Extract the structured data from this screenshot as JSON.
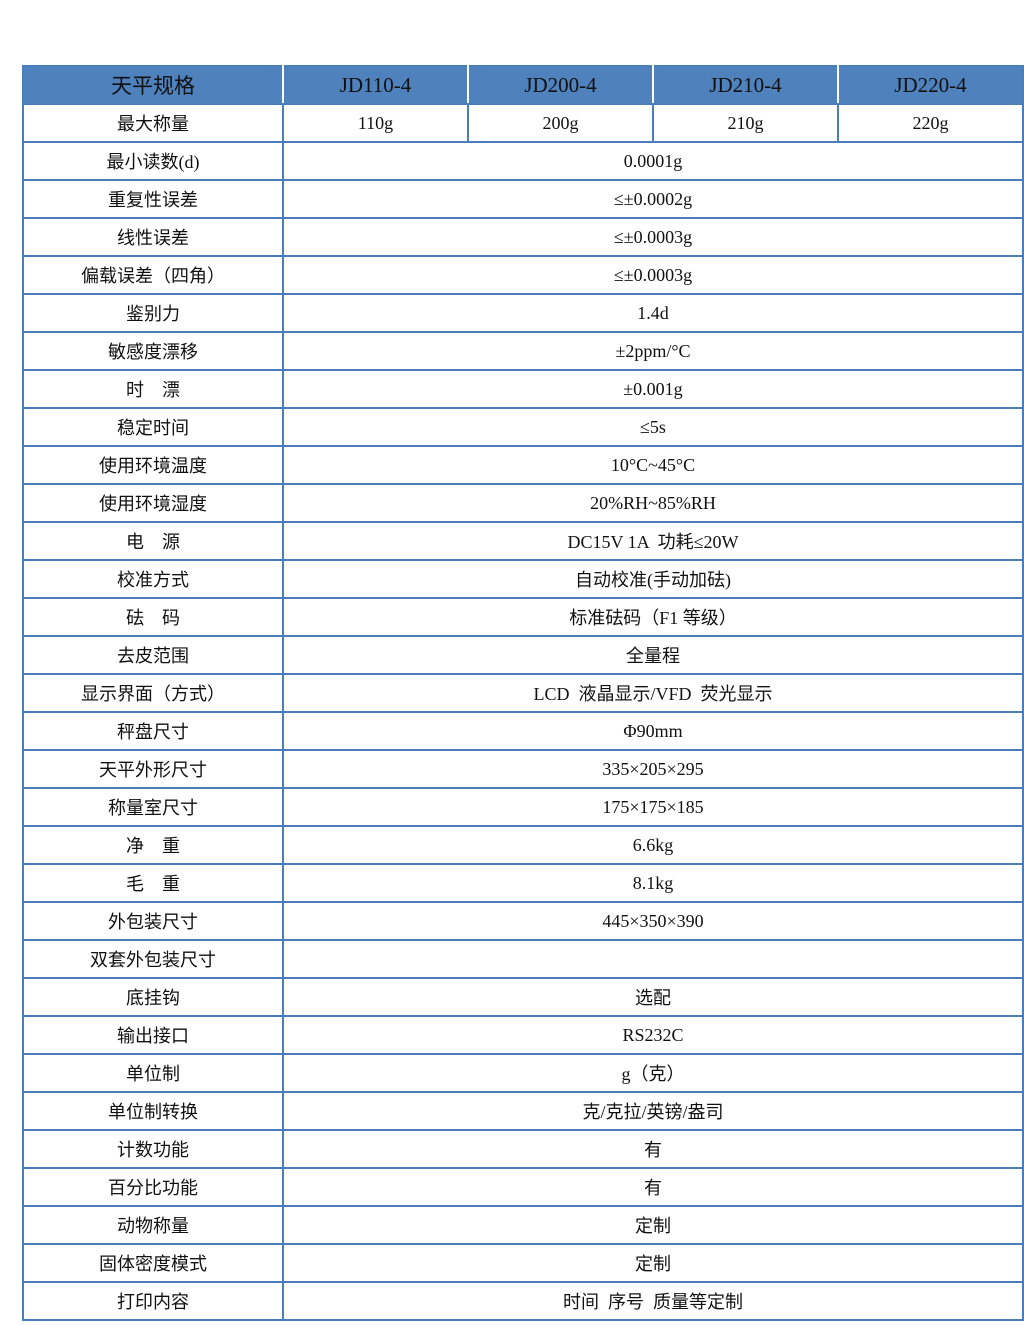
{
  "colors": {
    "header_bg": "#4f81bd",
    "border": "#4a7ebb"
  },
  "header": {
    "label": "天平规格",
    "models": [
      "JD110-4",
      "JD200-4",
      "JD210-4",
      "JD220-4"
    ]
  },
  "rows": [
    {
      "label": "最大称量",
      "values": [
        "110g",
        "200g",
        "210g",
        "220g"
      ]
    },
    {
      "label": "最小读数(d)",
      "value": "0.0001g"
    },
    {
      "label": "重复性误差",
      "value": "≤±0.0002g"
    },
    {
      "label": "线性误差",
      "value": "≤±0.0003g"
    },
    {
      "label": "偏载误差（四角）",
      "value": "≤±0.0003g"
    },
    {
      "label": "鉴别力",
      "value": "1.4d"
    },
    {
      "label": "敏感度漂移",
      "value": "±2ppm/°C"
    },
    {
      "label": "时　漂",
      "value": "±0.001g"
    },
    {
      "label": "稳定时间",
      "value": "≤5s"
    },
    {
      "label": "使用环境温度",
      "value": "10°C~45°C"
    },
    {
      "label": "使用环境湿度",
      "value": "20%RH~85%RH"
    },
    {
      "label": "电　源",
      "value": "DC15V 1A  功耗≤20W"
    },
    {
      "label": "校准方式",
      "value": "自动校准(手动加砝)"
    },
    {
      "label": "砝　码",
      "value": "标准砝码（F1 等级）"
    },
    {
      "label": "去皮范围",
      "value": "全量程"
    },
    {
      "label": "显示界面（方式）",
      "value": "LCD  液晶显示/VFD  荧光显示"
    },
    {
      "label": "秤盘尺寸",
      "value": "Φ90mm"
    },
    {
      "label": "天平外形尺寸",
      "value": "335×205×295"
    },
    {
      "label": "称量室尺寸",
      "value": "175×175×185"
    },
    {
      "label": "净　重",
      "value": "6.6kg"
    },
    {
      "label": "毛　重",
      "value": "8.1kg"
    },
    {
      "label": "外包装尺寸",
      "value": "445×350×390"
    },
    {
      "label": "双套外包装尺寸",
      "value": ""
    },
    {
      "label": "底挂钩",
      "value": "选配"
    },
    {
      "label": "输出接口",
      "value": "RS232C"
    },
    {
      "label": "单位制",
      "value": "g（克）"
    },
    {
      "label": "单位制转换",
      "value": "克/克拉/英镑/盎司"
    },
    {
      "label": "计数功能",
      "value": "有"
    },
    {
      "label": "百分比功能",
      "value": "有"
    },
    {
      "label": "动物称量",
      "value": "定制"
    },
    {
      "label": "固体密度模式",
      "value": "定制"
    },
    {
      "label": "打印内容",
      "value": "时间  序号  质量等定制"
    }
  ]
}
